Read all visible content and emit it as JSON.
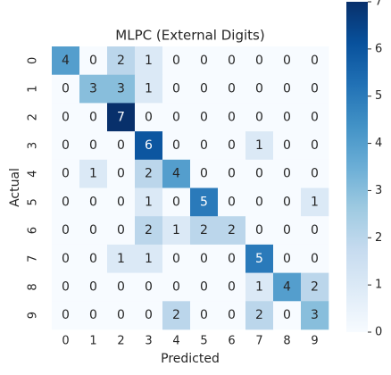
{
  "chart_data": {
    "type": "heatmap",
    "title": "MLPC (External Digits)",
    "xlabel": "Predicted",
    "ylabel": "Actual",
    "x": [
      "0",
      "1",
      "2",
      "3",
      "4",
      "5",
      "6",
      "7",
      "8",
      "9"
    ],
    "y": [
      "0",
      "1",
      "2",
      "3",
      "4",
      "5",
      "6",
      "7",
      "8",
      "9"
    ],
    "values": [
      [
        4,
        0,
        2,
        1,
        0,
        0,
        0,
        0,
        0,
        0
      ],
      [
        0,
        3,
        3,
        1,
        0,
        0,
        0,
        0,
        0,
        0
      ],
      [
        0,
        0,
        7,
        0,
        0,
        0,
        0,
        0,
        0,
        0
      ],
      [
        0,
        0,
        0,
        6,
        0,
        0,
        0,
        1,
        0,
        0
      ],
      [
        0,
        1,
        0,
        2,
        4,
        0,
        0,
        0,
        0,
        0
      ],
      [
        0,
        0,
        0,
        1,
        0,
        5,
        0,
        0,
        0,
        1
      ],
      [
        0,
        0,
        0,
        2,
        1,
        2,
        2,
        0,
        0,
        0
      ],
      [
        0,
        0,
        1,
        1,
        0,
        0,
        0,
        5,
        0,
        0
      ],
      [
        0,
        0,
        0,
        0,
        0,
        0,
        0,
        1,
        4,
        2
      ],
      [
        0,
        0,
        0,
        0,
        2,
        0,
        0,
        2,
        0,
        3
      ]
    ],
    "zlim": [
      0,
      7
    ],
    "zticks": [
      0,
      1,
      2,
      3,
      4,
      5,
      6,
      7
    ],
    "colormap": [
      "#f7fbff",
      "#deebf7",
      "#c6dbef",
      "#9ecae1",
      "#6baed6",
      "#4292c6",
      "#2171b5",
      "#08519c",
      "#08306b"
    ]
  }
}
